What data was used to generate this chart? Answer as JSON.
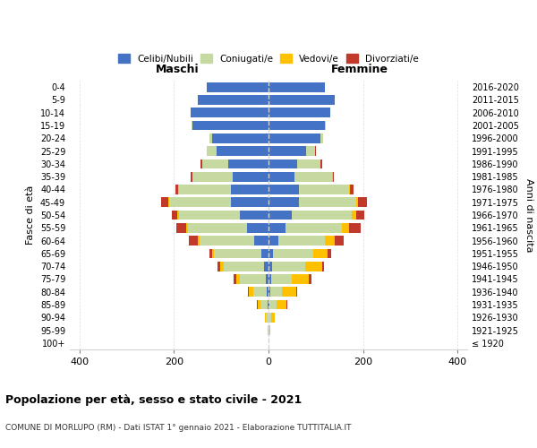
{
  "age_groups": [
    "100+",
    "95-99",
    "90-94",
    "85-89",
    "80-84",
    "75-79",
    "70-74",
    "65-69",
    "60-64",
    "55-59",
    "50-54",
    "45-49",
    "40-44",
    "35-39",
    "30-34",
    "25-29",
    "20-24",
    "15-19",
    "10-14",
    "5-9",
    "0-4"
  ],
  "birth_years": [
    "≤ 1920",
    "1921-1925",
    "1926-1930",
    "1931-1935",
    "1936-1940",
    "1941-1945",
    "1946-1950",
    "1951-1955",
    "1956-1960",
    "1961-1965",
    "1966-1970",
    "1971-1975",
    "1976-1980",
    "1981-1985",
    "1986-1990",
    "1991-1995",
    "1996-2000",
    "2001-2005",
    "2006-2010",
    "2011-2015",
    "2016-2020"
  ],
  "males": {
    "celibi": [
      0,
      0,
      0,
      2,
      3,
      5,
      10,
      15,
      30,
      45,
      60,
      80,
      80,
      75,
      85,
      110,
      120,
      160,
      165,
      150,
      130
    ],
    "coniugati": [
      0,
      1,
      5,
      15,
      30,
      55,
      85,
      100,
      115,
      125,
      130,
      130,
      110,
      85,
      55,
      20,
      5,
      2,
      0,
      0,
      0
    ],
    "vedovi": [
      0,
      1,
      3,
      5,
      8,
      8,
      8,
      5,
      5,
      5,
      3,
      2,
      1,
      1,
      0,
      0,
      0,
      0,
      0,
      0,
      0
    ],
    "divorziati": [
      0,
      0,
      0,
      2,
      3,
      5,
      5,
      5,
      18,
      20,
      12,
      15,
      5,
      3,
      3,
      0,
      0,
      0,
      0,
      0,
      0
    ]
  },
  "females": {
    "nubili": [
      0,
      0,
      0,
      2,
      3,
      5,
      8,
      10,
      20,
      35,
      50,
      65,
      65,
      55,
      60,
      80,
      110,
      120,
      130,
      140,
      120
    ],
    "coniugate": [
      0,
      1,
      5,
      15,
      25,
      45,
      70,
      85,
      100,
      120,
      125,
      120,
      105,
      80,
      50,
      18,
      5,
      2,
      0,
      0,
      0
    ],
    "vedove": [
      0,
      2,
      8,
      20,
      30,
      35,
      35,
      30,
      20,
      15,
      10,
      5,
      2,
      1,
      0,
      0,
      0,
      0,
      0,
      0,
      0
    ],
    "divorziate": [
      0,
      0,
      0,
      2,
      3,
      5,
      5,
      8,
      18,
      25,
      18,
      18,
      8,
      3,
      3,
      2,
      0,
      0,
      0,
      0,
      0
    ]
  },
  "colors": {
    "celibi": "#4472c4",
    "coniugati": "#c5d9a0",
    "vedovi": "#ffc000",
    "divorziati": "#c0392b"
  },
  "xlim": 420,
  "title": "Popolazione per età, sesso e stato civile - 2021",
  "subtitle": "COMUNE DI MORLUPO (RM) - Dati ISTAT 1° gennaio 2021 - Elaborazione TUTTITALIA.IT",
  "ylabel": "Fasce di età",
  "ylabel_right": "Anni di nascita"
}
